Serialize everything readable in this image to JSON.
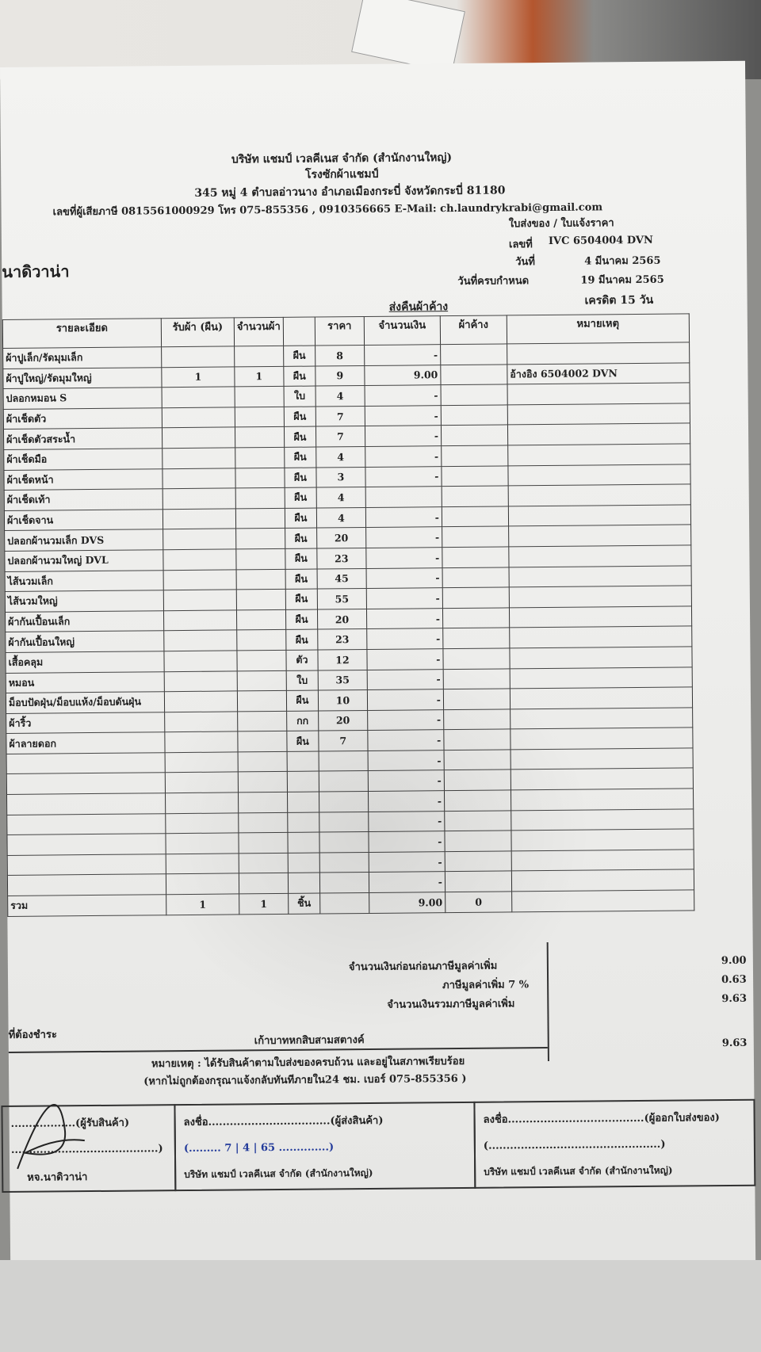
{
  "company": {
    "name": "บริษัท แชมป์ เวลคีเนส จำกัด (สำนักงานใหญ่)",
    "plant": "โรงซักผ้าแชมป์",
    "address": "345 หมู่ 4 ตำบลอ่าวนาง อำเภอเมืองกระบี่ จังหวัดกระบี่ 81180",
    "contact": "เลขที่ผู้เสียภาษี 0815561000929 โทร 075-855356 , 0910356665  E-Mail: ch.laundrykrabi@gmail.com"
  },
  "doc": {
    "type": "ใบส่งของ / ใบแจ้งราคา",
    "no_label": "เลขที่",
    "no": "IVC 6504004 DVN",
    "date_label": "วันที่",
    "date": "4 มีนาคม 2565",
    "due_label": "วันที่ครบกำหนด",
    "due": "19 มีนาคม 2565",
    "credit": "เครดิต 15 วัน",
    "section": "ส่งคืนผ้าค้าง",
    "customer": "นาดิวาน่า"
  },
  "table": {
    "headers": [
      "รายละเอียด",
      "รับผ้า (ผืน)",
      "จำนวนผ้า",
      "",
      "ราคา",
      "จำนวนเงิน",
      "ผ้าค้าง",
      "หมายเหตุ"
    ],
    "rows": [
      [
        "ผ้าปูเล็ก/รัดมุมเล็ก",
        "",
        "",
        "ผืน",
        "8",
        "-",
        "",
        ""
      ],
      [
        "ผ้าปูใหญ่/รัดมุมใหญ่",
        "1",
        "1",
        "ผืน",
        "9",
        "9.00",
        "",
        "อ้างอิง  6504002 DVN"
      ],
      [
        "ปลอกหมอน S",
        "",
        "",
        "ใบ",
        "4",
        "-",
        "",
        ""
      ],
      [
        "ผ้าเช็ดตัว",
        "",
        "",
        "ผืน",
        "7",
        "-",
        "",
        ""
      ],
      [
        "ผ้าเช็ดตัวสระน้ำ",
        "",
        "",
        "ผืน",
        "7",
        "-",
        "",
        ""
      ],
      [
        "ผ้าเช็ดมือ",
        "",
        "",
        "ผืน",
        "4",
        "-",
        "",
        ""
      ],
      [
        "ผ้าเช็ดหน้า",
        "",
        "",
        "ผืน",
        "3",
        "-",
        "",
        ""
      ],
      [
        "ผ้าเช็ดเท้า",
        "",
        "",
        "ผืน",
        "4",
        "",
        "",
        ""
      ],
      [
        "ผ้าเช็ดจาน",
        "",
        "",
        "ผืน",
        "4",
        "-",
        "",
        ""
      ],
      [
        "ปลอกผ้านวมเล็ก DVS",
        "",
        "",
        "ผืน",
        "20",
        "-",
        "",
        ""
      ],
      [
        "ปลอกผ้านวมใหญ่ DVL",
        "",
        "",
        "ผืน",
        "23",
        "-",
        "",
        ""
      ],
      [
        "ไส้นวมเล็ก",
        "",
        "",
        "ผืน",
        "45",
        "-",
        "",
        ""
      ],
      [
        "ไส้นวมใหญ่",
        "",
        "",
        "ผืน",
        "55",
        "-",
        "",
        ""
      ],
      [
        "ผ้ากันเปื้อนเล็ก",
        "",
        "",
        "ผืน",
        "20",
        "-",
        "",
        ""
      ],
      [
        "ผ้ากันเปื้อนใหญ่",
        "",
        "",
        "ผืน",
        "23",
        "-",
        "",
        ""
      ],
      [
        "เสื้อคลุม",
        "",
        "",
        "ตัว",
        "12",
        "-",
        "",
        ""
      ],
      [
        "หมอน",
        "",
        "",
        "ใบ",
        "35",
        "-",
        "",
        ""
      ],
      [
        "ม็อบปัดฝุ่น/ม็อบแห้ง/ม็อบดันฝุ่น",
        "",
        "",
        "ผืน",
        "10",
        "-",
        "",
        ""
      ],
      [
        "ผ้าริ้ว",
        "",
        "",
        "กก",
        "20",
        "-",
        "",
        ""
      ],
      [
        "ผ้าลายดอก",
        "",
        "",
        "ผืน",
        "7",
        "-",
        "",
        ""
      ],
      [
        "",
        "",
        "",
        "",
        "",
        "-",
        "",
        ""
      ],
      [
        "",
        "",
        "",
        "",
        "",
        "-",
        "",
        ""
      ],
      [
        "",
        "",
        "",
        "",
        "",
        "-",
        "",
        ""
      ],
      [
        "",
        "",
        "",
        "",
        "",
        "-",
        "",
        ""
      ],
      [
        "",
        "",
        "",
        "",
        "",
        "-",
        "",
        ""
      ],
      [
        "",
        "",
        "",
        "",
        "",
        "-",
        "",
        ""
      ],
      [
        "",
        "",
        "",
        "",
        "",
        "-",
        "",
        ""
      ]
    ],
    "total": [
      "รวม",
      "1",
      "1",
      "ชิ้น",
      "",
      "9.00",
      "0",
      ""
    ]
  },
  "summary": {
    "before_vat_label": "จำนวนเงินก่อนก่อนภาษีมูลค่าเพิ่ม",
    "before_vat": "9.00",
    "vat_label": "ภาษีมูลค่าเพิ่ม 7 %",
    "vat": "0.63",
    "total_label": "จำนวนเงินรวมภาษีมูลค่าเพิ่ม",
    "total": "9.63",
    "payable_label": "ที่ต้องชำระ",
    "amount_words": "เก้าบาทหกสิบสามสตางค์",
    "grand": "9.63"
  },
  "footer": {
    "note1": "หมายเหตุ : ได้รับสินค้าตามใบส่งของครบถ้วน และอยู่ในสภาพเรียบร้อย",
    "note2": "(หากไม่ถูกต้องกรุณาแจ้งกลับทันทีภายใน24 ชม.  เบอร์ 075-855356 )"
  },
  "signatures": {
    "receiver": {
      "line": "..................(ผู้รับสินค้า)",
      "paren": ".........................................)",
      "org": "หจ.นาดิวาน่า"
    },
    "sender": {
      "line": "ลงชื่อ..................................(ผู้ส่งสินค้า)",
      "paren": "(.........  7 | 4 | 65  ..............)",
      "org": "บริษัท แชมป์ เวลคีเนส จำกัด (สำนักงานใหญ่)"
    },
    "issuer": {
      "line": "ลงชื่อ......................................(ผู้ออกใบส่งของ)",
      "paren": "(................................................)",
      "org": "บริษัท แชมป์ เวลคีเนส จำกัด (สำนักงานใหญ่)"
    }
  }
}
